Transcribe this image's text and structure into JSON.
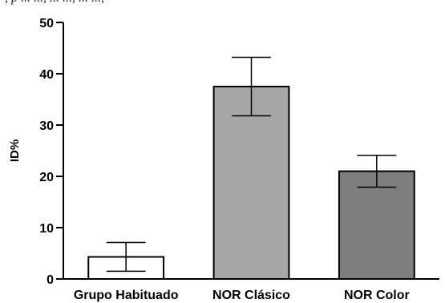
{
  "header_fragment": ", p ... ..., ... ..., ... ...,",
  "chart_data": {
    "type": "bar",
    "title": "",
    "xlabel": "",
    "ylabel": "ID%",
    "ylim": [
      0,
      50
    ],
    "yticks": [
      "0",
      "10",
      "20",
      "30",
      "40",
      "50"
    ],
    "grid": false,
    "categories": [
      "Grupo Habituado",
      "NOR Clásico",
      "NOR Color"
    ],
    "values": [
      4.3,
      37.5,
      21.0
    ],
    "error_upper": [
      7.1,
      43.2,
      24.1
    ],
    "error_lower": [
      1.5,
      31.8,
      17.9
    ],
    "bar_colors": [
      "#ffffff",
      "#a6a6a6",
      "#7f7f7f"
    ]
  }
}
